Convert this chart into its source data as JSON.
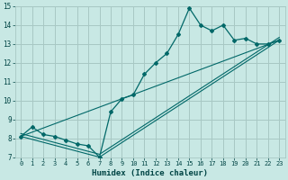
{
  "title": "",
  "xlabel": "Humidex (Indice chaleur)",
  "xlim": [
    -0.5,
    23.5
  ],
  "ylim": [
    7,
    15
  ],
  "yticks": [
    7,
    8,
    9,
    10,
    11,
    12,
    13,
    14,
    15
  ],
  "xticks": [
    0,
    1,
    2,
    3,
    4,
    5,
    6,
    7,
    8,
    9,
    10,
    11,
    12,
    13,
    14,
    15,
    16,
    17,
    18,
    19,
    20,
    21,
    22,
    23
  ],
  "bg_color": "#c8e8e4",
  "grid_color": "#a8c8c4",
  "line_color": "#006868",
  "line1_x": [
    0,
    1,
    2,
    3,
    4,
    5,
    6,
    7,
    8,
    9,
    10,
    11,
    12,
    13,
    14,
    15,
    16,
    17,
    18,
    19,
    20,
    21,
    22,
    23
  ],
  "line1_y": [
    8.1,
    8.6,
    8.2,
    8.1,
    7.9,
    7.7,
    7.6,
    7.0,
    9.4,
    10.1,
    10.3,
    11.4,
    12.0,
    12.5,
    13.5,
    14.9,
    14.0,
    13.7,
    14.0,
    13.2,
    13.3,
    13.0,
    13.0,
    13.2
  ],
  "line2_x": [
    0,
    23
  ],
  "line2_y": [
    8.1,
    13.2
  ],
  "line3_x": [
    0,
    7,
    23
  ],
  "line3_y": [
    8.1,
    7.0,
    13.2
  ],
  "line4_x": [
    0,
    7,
    23
  ],
  "line4_y": [
    8.25,
    7.15,
    13.35
  ]
}
